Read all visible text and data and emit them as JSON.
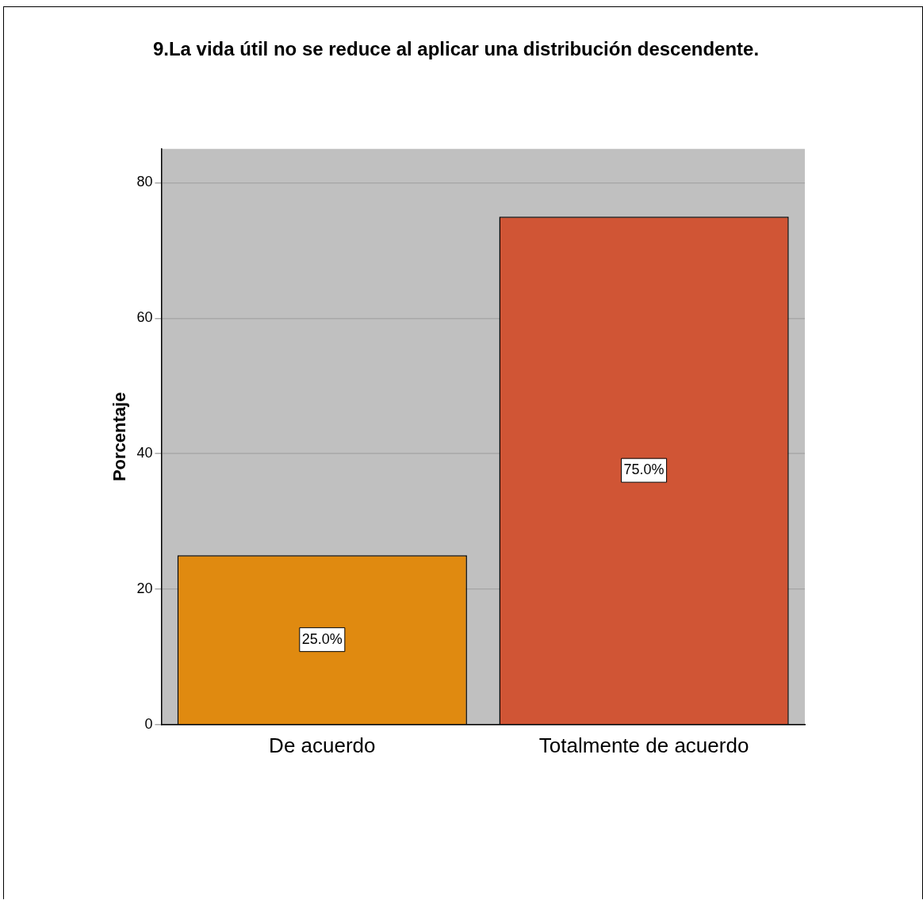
{
  "chart_data": {
    "type": "bar",
    "title": "9.La vida útil no se reduce al aplicar una distribución descendente.",
    "ylabel": "Porcentaje",
    "categories": [
      "De acuerdo",
      "Totalmente de acuerdo"
    ],
    "values": [
      25,
      75
    ],
    "colors": [
      "#e08a10",
      "#d05535"
    ],
    "value_labels": [
      "25.0%",
      "75.0%"
    ],
    "ylim": [
      0,
      85
    ],
    "yticks": [
      0,
      20,
      40,
      60,
      80
    ],
    "grid": "y",
    "legend": false
  }
}
